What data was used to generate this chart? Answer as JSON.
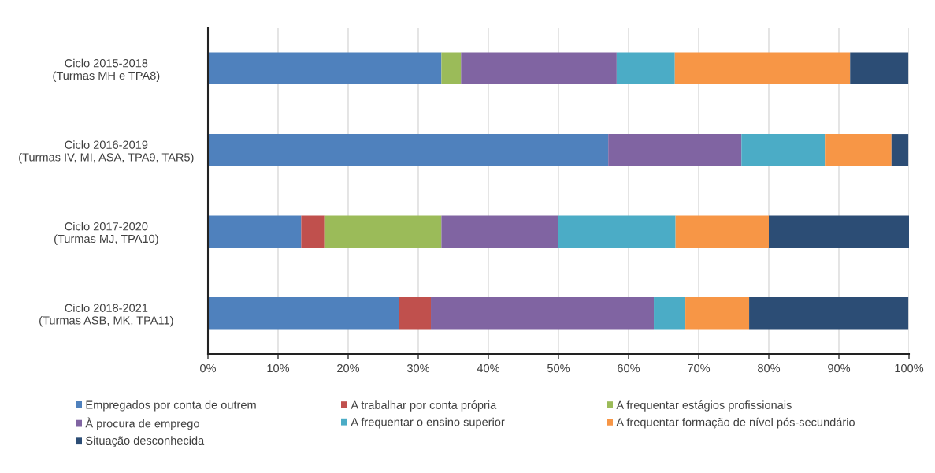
{
  "chart_data": {
    "type": "bar",
    "orientation": "horizontal",
    "stacked": true,
    "categories": [
      "Ciclo 2015-2018\n(Turmas MH e TPA8)",
      "Ciclo 2016-2019\n(Turmas IV, MI, ASA, TPA9, TAR5)",
      "Ciclo 2017-2020\n(Turmas MJ, TPA10)",
      "Ciclo 2018-2021\n(Turmas ASB, MK, TPA11)"
    ],
    "series": [
      {
        "name": "Empregados por conta de outrem",
        "color": "#4f81bd",
        "values": [
          33.3,
          57.1,
          13.3,
          27.3
        ]
      },
      {
        "name": "A trabalhar por conta própria",
        "color": "#c0504d",
        "values": [
          null,
          null,
          3.3,
          4.5
        ]
      },
      {
        "name": "A frequentar estágios profissionais",
        "color": "#9bbb59",
        "values": [
          2.8,
          null,
          16.7,
          null
        ]
      },
      {
        "name": "À procura de emprego",
        "color": "#8064a2",
        "values": [
          22.2,
          19.0,
          16.7,
          31.8
        ]
      },
      {
        "name": "A frequentar o ensino superior",
        "color": "#4bacc6",
        "values": [
          8.3,
          11.9,
          16.7,
          4.5
        ]
      },
      {
        "name": "A frequentar formação de nível pós-secundário",
        "color": "#f79646",
        "values": [
          25.0,
          9.5,
          13.3,
          9.1
        ]
      },
      {
        "name": "Situação desconhecida",
        "color": "#2c4d75",
        "values": [
          8.3,
          2.4,
          20.0,
          22.7
        ]
      }
    ],
    "xlim": [
      0,
      100
    ],
    "xticks": [
      {
        "value": 0,
        "label": "0%"
      },
      {
        "value": 10,
        "label": "10%"
      },
      {
        "value": 20,
        "label": "20%"
      },
      {
        "value": 30,
        "label": "30%"
      },
      {
        "value": 40,
        "label": "40%"
      },
      {
        "value": 50,
        "label": "50%"
      },
      {
        "value": 60,
        "label": "60%"
      },
      {
        "value": 70,
        "label": "70%"
      },
      {
        "value": 80,
        "label": "80%"
      },
      {
        "value": 90,
        "label": "90%"
      },
      {
        "value": 100,
        "label": "100%"
      }
    ],
    "grid": "x",
    "legend": "bottom"
  }
}
